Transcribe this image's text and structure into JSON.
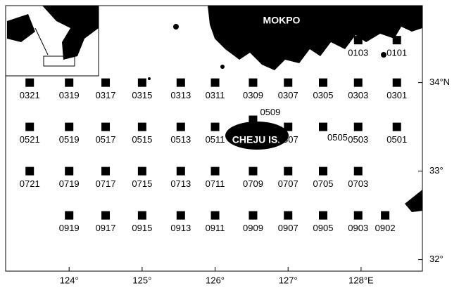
{
  "map": {
    "labels": {
      "city": "MOKPO",
      "island": "CHEJU IS."
    },
    "xlim": [
      123.13,
      128.84
    ],
    "ylim": [
      31.87,
      34.87
    ],
    "xticks": [
      {
        "value": 124,
        "label": "124°"
      },
      {
        "value": 125,
        "label": "125°"
      },
      {
        "value": 126,
        "label": "126°"
      },
      {
        "value": 127,
        "label": "127°"
      },
      {
        "value": 128,
        "label": "128°E"
      }
    ],
    "yticks": [
      {
        "value": 32,
        "label": "32°"
      },
      {
        "value": 33,
        "label": "33°"
      },
      {
        "value": 34,
        "label": "34°N"
      }
    ],
    "stations": [
      {
        "name": "0103",
        "lon": 127.96,
        "lat": 34.48
      },
      {
        "name": "0101",
        "lon": 128.49,
        "lat": 34.48
      },
      {
        "name": "0321",
        "lon": 123.46,
        "lat": 34.0
      },
      {
        "name": "0319",
        "lon": 124.0,
        "lat": 34.0
      },
      {
        "name": "0317",
        "lon": 124.5,
        "lat": 34.0
      },
      {
        "name": "0315",
        "lon": 125.0,
        "lat": 34.0
      },
      {
        "name": "0313",
        "lon": 125.53,
        "lat": 34.0
      },
      {
        "name": "0311",
        "lon": 126.0,
        "lat": 34.0
      },
      {
        "name": "0309",
        "lon": 126.52,
        "lat": 34.0
      },
      {
        "name": "0307",
        "lon": 127.0,
        "lat": 34.0
      },
      {
        "name": "0305",
        "lon": 127.48,
        "lat": 34.0
      },
      {
        "name": "0303",
        "lon": 127.96,
        "lat": 34.0
      },
      {
        "name": "0301",
        "lon": 128.49,
        "lat": 34.0
      },
      {
        "name": "0509",
        "lon": 126.52,
        "lat": 33.58
      },
      {
        "name": "0521",
        "lon": 123.46,
        "lat": 33.5
      },
      {
        "name": "0519",
        "lon": 124.0,
        "lat": 33.5
      },
      {
        "name": "0517",
        "lon": 124.5,
        "lat": 33.5
      },
      {
        "name": "0515",
        "lon": 125.0,
        "lat": 33.5
      },
      {
        "name": "0513",
        "lon": 125.53,
        "lat": 33.5
      },
      {
        "name": "0511",
        "lon": 126.0,
        "lat": 33.5
      },
      {
        "name": "0507",
        "lon": 127.0,
        "lat": 33.5
      },
      {
        "name": "0505",
        "lon": 127.48,
        "lat": 33.5
      },
      {
        "name": "0503",
        "lon": 127.96,
        "lat": 33.5
      },
      {
        "name": "0501",
        "lon": 128.49,
        "lat": 33.5
      },
      {
        "name": "0721",
        "lon": 123.46,
        "lat": 33.0
      },
      {
        "name": "0719",
        "lon": 124.0,
        "lat": 33.0
      },
      {
        "name": "0717",
        "lon": 124.5,
        "lat": 33.0
      },
      {
        "name": "0715",
        "lon": 125.0,
        "lat": 33.0
      },
      {
        "name": "0713",
        "lon": 125.53,
        "lat": 33.0
      },
      {
        "name": "0711",
        "lon": 126.0,
        "lat": 33.0
      },
      {
        "name": "0709",
        "lon": 126.52,
        "lat": 33.0
      },
      {
        "name": "0707",
        "lon": 127.0,
        "lat": 33.0
      },
      {
        "name": "0705",
        "lon": 127.48,
        "lat": 33.0
      },
      {
        "name": "0703",
        "lon": 127.96,
        "lat": 33.0
      },
      {
        "name": "0919",
        "lon": 124.0,
        "lat": 32.5
      },
      {
        "name": "0917",
        "lon": 124.5,
        "lat": 32.5
      },
      {
        "name": "0915",
        "lon": 125.0,
        "lat": 32.5
      },
      {
        "name": "0913",
        "lon": 125.53,
        "lat": 32.5
      },
      {
        "name": "0911",
        "lon": 126.0,
        "lat": 32.5
      },
      {
        "name": "0909",
        "lon": 126.52,
        "lat": 32.5
      },
      {
        "name": "0907",
        "lon": 127.0,
        "lat": 32.5
      },
      {
        "name": "0905",
        "lon": 127.48,
        "lat": 32.5
      },
      {
        "name": "0903",
        "lon": 127.96,
        "lat": 32.5
      },
      {
        "name": "0902",
        "lon": 128.33,
        "lat": 32.5
      }
    ]
  }
}
